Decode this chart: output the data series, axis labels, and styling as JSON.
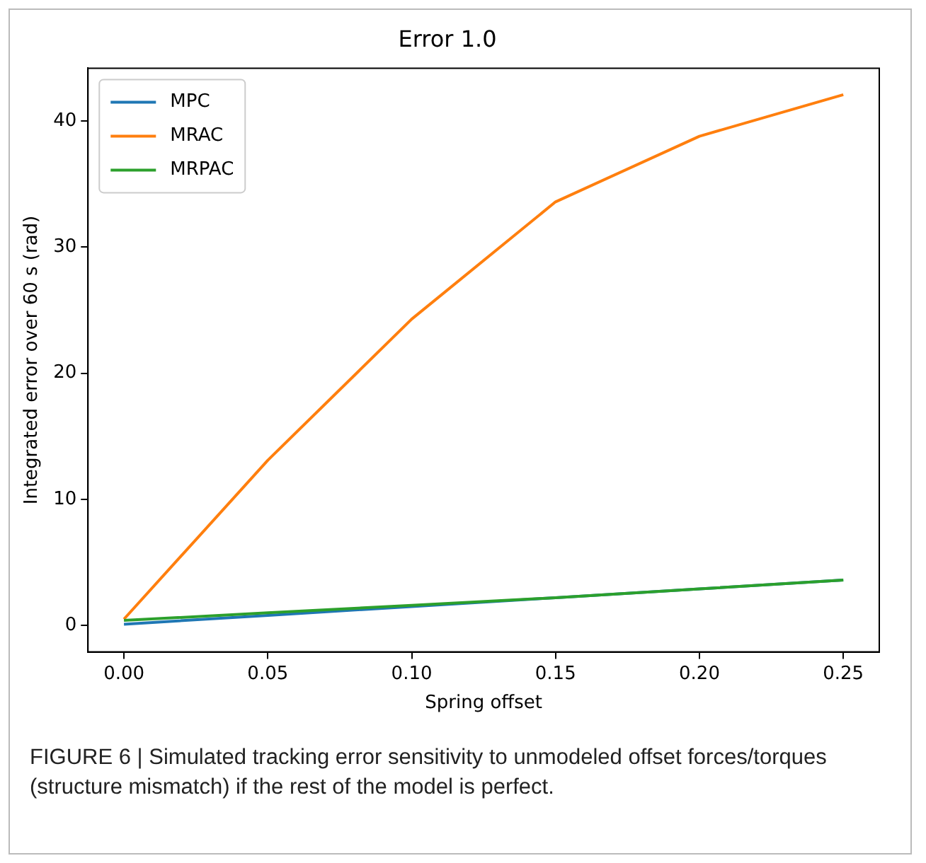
{
  "chart_data": {
    "type": "line",
    "title": "Error 1.0",
    "xlabel": "Spring offset",
    "ylabel": "Integrated error over 60 s (rad)",
    "x": [
      0,
      0.05,
      0.1,
      0.15,
      0.2,
      0.25
    ],
    "series": [
      {
        "name": "MPC",
        "color": "#1f77b4",
        "values": [
          0.1,
          0.8,
          1.5,
          2.2,
          2.9,
          3.6
        ]
      },
      {
        "name": "MRAC",
        "color": "#ff7f0e",
        "values": [
          0.5,
          13.1,
          24.3,
          33.6,
          38.8,
          42.1
        ]
      },
      {
        "name": "MRPAC",
        "color": "#2ca02c",
        "values": [
          0.4,
          1.0,
          1.6,
          2.2,
          2.9,
          3.6
        ]
      }
    ],
    "xlim": [
      -0.0125,
      0.2625
    ],
    "xticks": [
      {
        "value": 0,
        "label": "0.00"
      },
      {
        "value": 0.05,
        "label": "0.05"
      },
      {
        "value": 0.1,
        "label": "0.10"
      },
      {
        "value": 0.15,
        "label": "0.15"
      },
      {
        "value": 0.2,
        "label": "0.20"
      },
      {
        "value": 0.25,
        "label": "0.25"
      }
    ],
    "ylim": [
      -2.1,
      44.2
    ],
    "yticks": [
      0,
      10,
      20,
      30,
      40
    ],
    "grid": false,
    "legend": "top left",
    "marker": "none",
    "line_style": "solid",
    "annotations": [
      "FIGURE 6 | Simulated tracking error sensitivity to unmodeled offset forces/torques (structure mismatch) if the rest of the model is perfect."
    ]
  }
}
